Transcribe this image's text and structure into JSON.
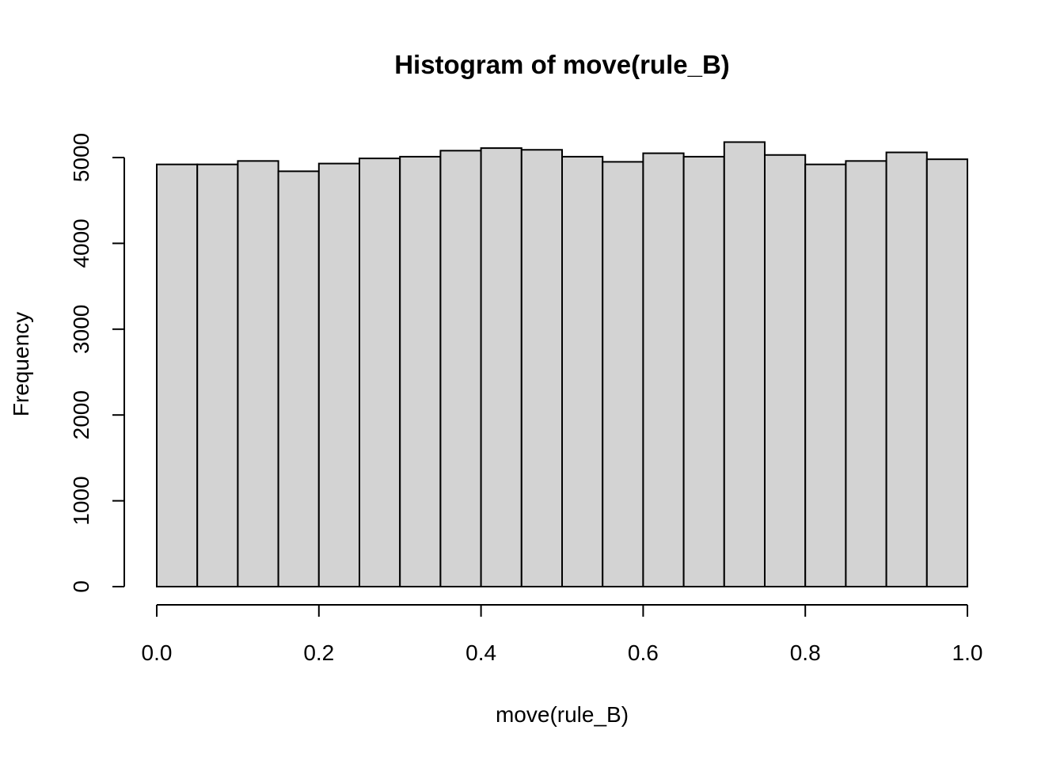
{
  "chart_data": {
    "type": "bar",
    "title": "Histogram of move(rule_B)",
    "xlabel": "move(rule_B)",
    "ylabel": "Frequency",
    "bin_edges": [
      0.0,
      0.05,
      0.1,
      0.15,
      0.2,
      0.25,
      0.3,
      0.35,
      0.4,
      0.45,
      0.5,
      0.55,
      0.6,
      0.65,
      0.7,
      0.75,
      0.8,
      0.85,
      0.9,
      0.95,
      1.0
    ],
    "values": [
      4920,
      4920,
      4960,
      4840,
      4930,
      4990,
      5010,
      5080,
      5110,
      5090,
      5010,
      4950,
      5050,
      5010,
      5180,
      5030,
      4920,
      4960,
      5060,
      4980
    ],
    "xlim": [
      0,
      1
    ],
    "ylim": [
      0,
      5000
    ],
    "x_ticks": [
      0.0,
      0.2,
      0.4,
      0.6,
      0.8,
      1.0
    ],
    "x_tick_labels": [
      "0.0",
      "0.2",
      "0.4",
      "0.6",
      "0.8",
      "1.0"
    ],
    "y_ticks": [
      0,
      1000,
      2000,
      3000,
      4000,
      5000
    ],
    "y_tick_labels": [
      "0",
      "1000",
      "2000",
      "3000",
      "4000",
      "5000"
    ],
    "grid": false,
    "colors": {
      "bar_fill": "#d3d3d3",
      "bar_stroke": "#000000"
    }
  }
}
